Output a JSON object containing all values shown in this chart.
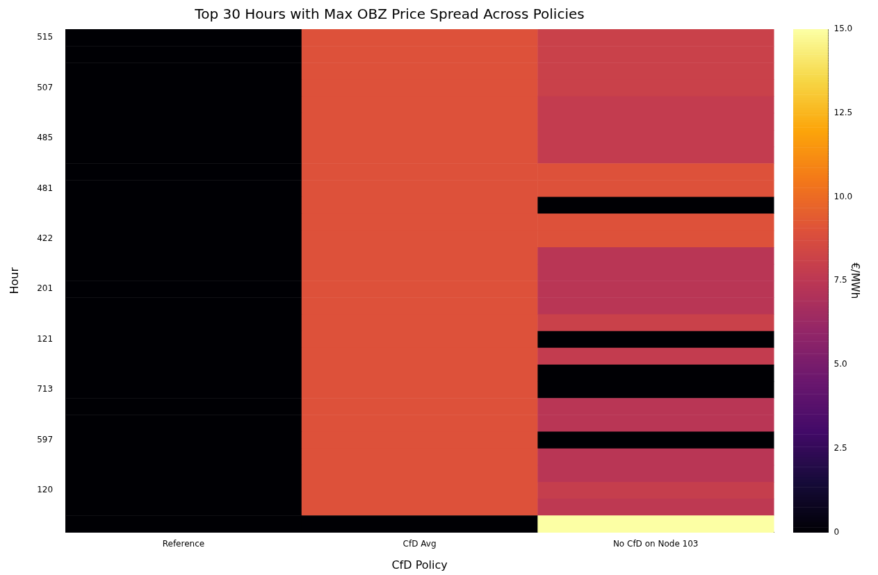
{
  "chart_data": {
    "type": "heatmap",
    "title": "Top 30 Hours with Max OBZ Price Spread Across Policies",
    "xlabel": "CfD Policy",
    "ylabel": "Hour",
    "clabel": "€/MWh",
    "categories": [
      "Reference",
      "CfD Avg",
      "No CfD on Node 103"
    ],
    "y_categories": [
      "515",
      null,
      null,
      "507",
      null,
      null,
      "485",
      null,
      null,
      "481",
      null,
      null,
      "422",
      null,
      null,
      "201",
      null,
      null,
      "121",
      null,
      null,
      "713",
      null,
      null,
      "597",
      null,
      null,
      "120",
      null,
      null
    ],
    "cells": [
      [
        0,
        9.0,
        8.1
      ],
      [
        0,
        9.0,
        8.1
      ],
      [
        0,
        9.0,
        8.1
      ],
      [
        0,
        9.0,
        8.1
      ],
      [
        0,
        9.0,
        7.8
      ],
      [
        0,
        9.0,
        7.8
      ],
      [
        0,
        9.0,
        7.8
      ],
      [
        0,
        9.0,
        7.8
      ],
      [
        0,
        9.0,
        9.0
      ],
      [
        0,
        9.0,
        9.0
      ],
      [
        0,
        9.0,
        0
      ],
      [
        0,
        9.0,
        9.0
      ],
      [
        0,
        9.0,
        9.0
      ],
      [
        0,
        9.0,
        7.4
      ],
      [
        0,
        9.0,
        7.4
      ],
      [
        0,
        9.0,
        7.4
      ],
      [
        0,
        9.0,
        7.4
      ],
      [
        0,
        9.0,
        8.1
      ],
      [
        0,
        9.0,
        0
      ],
      [
        0,
        9.0,
        7.8
      ],
      [
        0,
        9.0,
        0
      ],
      [
        0,
        9.0,
        0
      ],
      [
        0,
        9.0,
        7.4
      ],
      [
        0,
        9.0,
        7.4
      ],
      [
        0,
        9.0,
        0
      ],
      [
        0,
        9.0,
        7.4
      ],
      [
        0,
        9.0,
        7.4
      ],
      [
        0,
        9.0,
        7.9
      ],
      [
        0,
        9.0,
        7.6
      ],
      [
        0,
        0,
        15
      ]
    ],
    "clim": [
      0,
      15
    ],
    "cticks": [
      0,
      2.5,
      {
        "value": 5,
        "label": "5.0"
      },
      7.5,
      {
        "value": 10,
        "label": "10.0"
      },
      12.5,
      {
        "value": 15,
        "label": "15.0"
      }
    ]
  }
}
